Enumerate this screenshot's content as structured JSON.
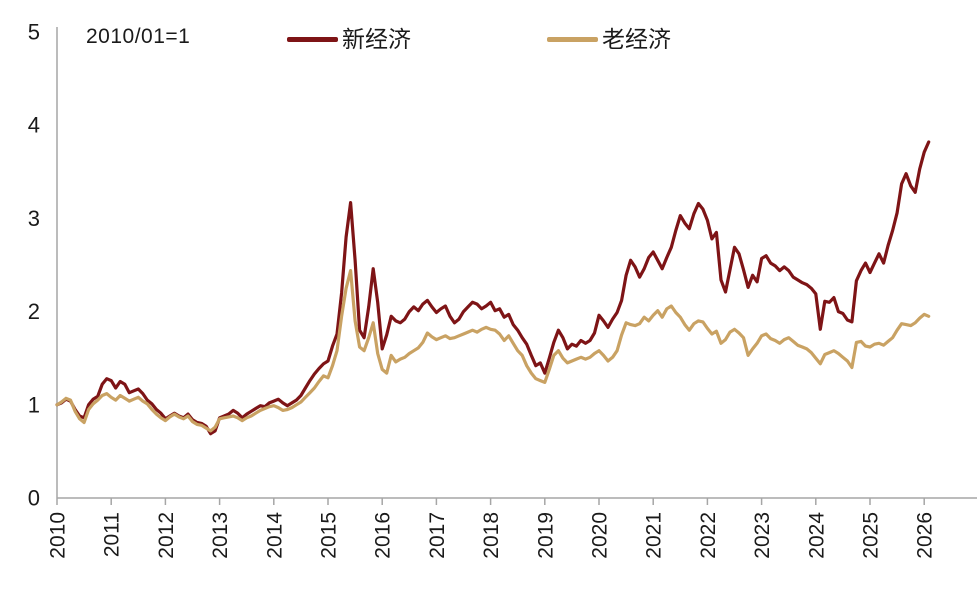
{
  "annotation": "2010/01=1",
  "axis": {
    "line_color": "#a6a6a6",
    "text_color": "#1a1a1a",
    "tick_font_size": 21
  },
  "legend": {
    "items": [
      {
        "label": "新经济",
        "color": "#7e1416"
      },
      {
        "label": "老经济",
        "color": "#c9a263"
      }
    ]
  },
  "chart_data": {
    "type": "line",
    "title": "",
    "xlabel": "",
    "ylabel": "",
    "annotation": "2010/01=1",
    "grid": false,
    "legend_position": "top-center",
    "ylim": [
      0,
      5
    ],
    "y_ticks": [
      0,
      1,
      2,
      3,
      4,
      5
    ],
    "x_start": "2010-01",
    "x_frequency": "monthly",
    "x_tick_labels": [
      "2010",
      "2011",
      "2012",
      "2013",
      "2014",
      "2015",
      "2016",
      "2017",
      "2018",
      "2019",
      "2020",
      "2021",
      "2022",
      "2023",
      "2024",
      "2025",
      "2026"
    ],
    "series": [
      {
        "name": "新经济",
        "color": "#7e1416",
        "values": [
          1.0,
          1.02,
          1.06,
          1.04,
          0.95,
          0.88,
          0.86,
          1.0,
          1.06,
          1.09,
          1.22,
          1.28,
          1.26,
          1.18,
          1.25,
          1.22,
          1.13,
          1.15,
          1.17,
          1.12,
          1.05,
          1.01,
          0.95,
          0.91,
          0.85,
          0.88,
          0.91,
          0.88,
          0.86,
          0.9,
          0.84,
          0.81,
          0.8,
          0.77,
          0.69,
          0.72,
          0.86,
          0.88,
          0.9,
          0.94,
          0.91,
          0.86,
          0.9,
          0.93,
          0.96,
          0.99,
          0.98,
          1.02,
          1.04,
          1.06,
          1.02,
          0.99,
          1.02,
          1.05,
          1.1,
          1.18,
          1.26,
          1.33,
          1.39,
          1.44,
          1.47,
          1.63,
          1.76,
          2.2,
          2.8,
          3.17,
          2.55,
          1.8,
          1.72,
          2.05,
          2.46,
          2.1,
          1.6,
          1.75,
          1.95,
          1.9,
          1.88,
          1.92,
          2.0,
          2.05,
          2.01,
          2.08,
          2.12,
          2.05,
          1.99,
          2.03,
          2.06,
          1.95,
          1.88,
          1.92,
          2.0,
          2.05,
          2.1,
          2.08,
          2.03,
          2.06,
          2.1,
          2.01,
          2.03,
          1.94,
          1.97,
          1.86,
          1.8,
          1.72,
          1.65,
          1.53,
          1.42,
          1.45,
          1.34,
          1.5,
          1.67,
          1.8,
          1.72,
          1.6,
          1.65,
          1.63,
          1.69,
          1.66,
          1.69,
          1.77,
          1.96,
          1.9,
          1.83,
          1.92,
          1.99,
          2.12,
          2.39,
          2.55,
          2.48,
          2.37,
          2.46,
          2.58,
          2.64,
          2.55,
          2.46,
          2.58,
          2.69,
          2.87,
          3.03,
          2.95,
          2.89,
          3.05,
          3.16,
          3.1,
          2.98,
          2.78,
          2.85,
          2.34,
          2.21,
          2.45,
          2.69,
          2.62,
          2.45,
          2.26,
          2.39,
          2.32,
          2.57,
          2.6,
          2.52,
          2.49,
          2.44,
          2.48,
          2.44,
          2.37,
          2.34,
          2.31,
          2.29,
          2.25,
          2.19,
          1.81,
          2.11,
          2.1,
          2.15,
          2.0,
          1.98,
          1.91,
          1.89,
          2.33,
          2.44,
          2.52,
          2.42,
          2.52,
          2.62,
          2.52,
          2.71,
          2.87,
          3.06,
          3.37,
          3.48,
          3.35,
          3.28,
          3.53,
          3.71,
          3.82
        ]
      },
      {
        "name": "老经济",
        "color": "#c9a263",
        "values": [
          1.0,
          1.03,
          1.07,
          1.05,
          0.93,
          0.85,
          0.81,
          0.95,
          1.01,
          1.05,
          1.1,
          1.12,
          1.08,
          1.05,
          1.1,
          1.07,
          1.04,
          1.06,
          1.08,
          1.04,
          1.01,
          0.95,
          0.9,
          0.86,
          0.83,
          0.87,
          0.9,
          0.87,
          0.85,
          0.88,
          0.82,
          0.79,
          0.78,
          0.75,
          0.72,
          0.76,
          0.85,
          0.86,
          0.87,
          0.88,
          0.86,
          0.83,
          0.86,
          0.88,
          0.91,
          0.94,
          0.96,
          0.98,
          0.99,
          0.97,
          0.94,
          0.95,
          0.97,
          1.0,
          1.03,
          1.08,
          1.13,
          1.18,
          1.25,
          1.31,
          1.29,
          1.42,
          1.58,
          1.95,
          2.25,
          2.44,
          1.9,
          1.62,
          1.58,
          1.72,
          1.88,
          1.55,
          1.38,
          1.34,
          1.53,
          1.46,
          1.49,
          1.51,
          1.55,
          1.58,
          1.61,
          1.67,
          1.77,
          1.73,
          1.7,
          1.72,
          1.74,
          1.71,
          1.72,
          1.74,
          1.76,
          1.78,
          1.8,
          1.78,
          1.81,
          1.83,
          1.81,
          1.8,
          1.76,
          1.69,
          1.74,
          1.66,
          1.58,
          1.53,
          1.42,
          1.34,
          1.28,
          1.26,
          1.24,
          1.38,
          1.53,
          1.58,
          1.5,
          1.45,
          1.47,
          1.49,
          1.51,
          1.49,
          1.51,
          1.55,
          1.58,
          1.53,
          1.47,
          1.51,
          1.58,
          1.75,
          1.88,
          1.86,
          1.85,
          1.87,
          1.94,
          1.9,
          1.96,
          2.01,
          1.94,
          2.03,
          2.06,
          1.99,
          1.94,
          1.86,
          1.8,
          1.87,
          1.9,
          1.89,
          1.82,
          1.76,
          1.79,
          1.66,
          1.7,
          1.78,
          1.81,
          1.77,
          1.72,
          1.53,
          1.6,
          1.66,
          1.74,
          1.76,
          1.71,
          1.69,
          1.66,
          1.7,
          1.72,
          1.68,
          1.64,
          1.62,
          1.6,
          1.56,
          1.5,
          1.44,
          1.54,
          1.56,
          1.58,
          1.55,
          1.51,
          1.47,
          1.4,
          1.67,
          1.68,
          1.63,
          1.62,
          1.65,
          1.66,
          1.64,
          1.68,
          1.72,
          1.8,
          1.87,
          1.86,
          1.85,
          1.88,
          1.93,
          1.97,
          1.95
        ]
      }
    ]
  }
}
